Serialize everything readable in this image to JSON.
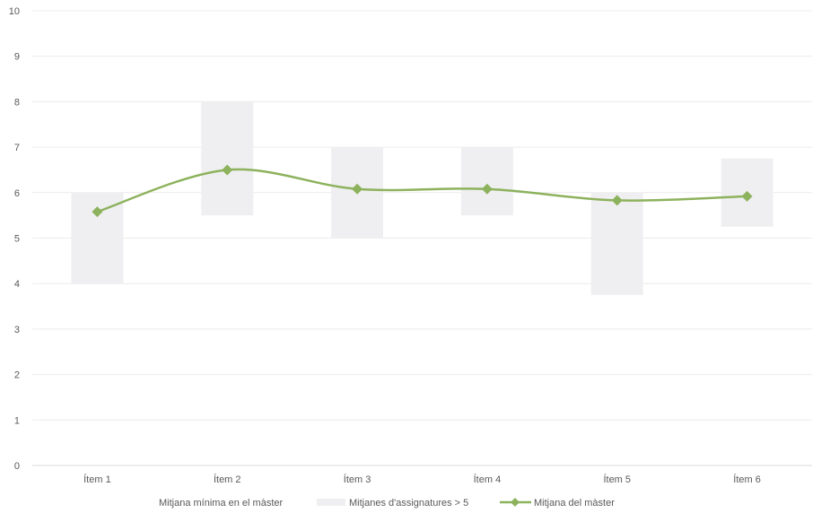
{
  "chart_data": {
    "type": "line",
    "categories": [
      "Ítem 1",
      "Ítem 2",
      "Ítem 3",
      "Ítem 4",
      "Ítem 5",
      "Ítem 6"
    ],
    "ylim": [
      0,
      10
    ],
    "y_ticks": [
      0,
      1,
      2,
      3,
      4,
      5,
      6,
      7,
      8,
      9,
      10
    ],
    "grid": true,
    "legend_position": "bottom",
    "series": [
      {
        "name": "Mitjana mínima en el màster",
        "kind": "stacked-base-invisible",
        "values": [
          4.0,
          5.5,
          5.0,
          5.5,
          3.75,
          5.25
        ]
      },
      {
        "name": "Mitjanes d'assignatures > 5",
        "kind": "stacked-bar-range",
        "values": [
          2.0,
          2.5,
          2.0,
          1.5,
          2.25,
          1.5
        ],
        "color": "#efeff1"
      },
      {
        "name": "Mitjana del màster",
        "kind": "line",
        "values": [
          5.58,
          6.5,
          6.08,
          6.08,
          5.83,
          5.92
        ],
        "color": "#8db25d"
      }
    ]
  }
}
